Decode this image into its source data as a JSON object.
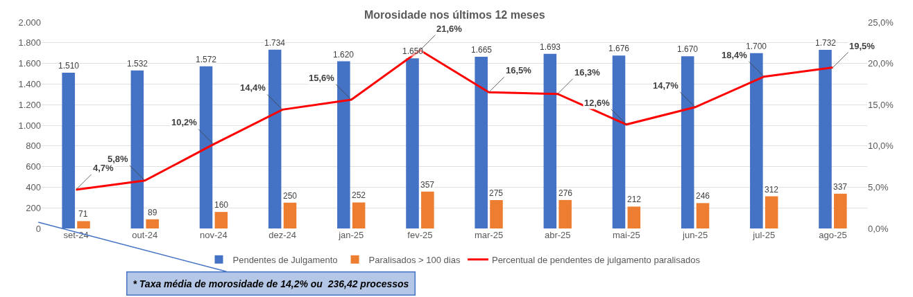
{
  "chart_data": {
    "type": "bar",
    "title": "Morosidade nos últimos 12 meses",
    "categories": [
      "set-24",
      "out-24",
      "nov-24",
      "dez-24",
      "jan-25",
      "fev-25",
      "mar-25",
      "abr-25",
      "mai-25",
      "jun-25",
      "jul-25",
      "ago-25"
    ],
    "series": [
      {
        "name": "Pendentes de Julgamento",
        "color": "#4472c4",
        "values": [
          1510,
          1532,
          1572,
          1734,
          1620,
          1650,
          1665,
          1693,
          1676,
          1670,
          1700,
          1732
        ],
        "value_labels": [
          "1.510",
          "1.532",
          "1.572",
          "1.734",
          "1.620",
          "1.650",
          "1.665",
          "1.693",
          "1.676",
          "1.670",
          "1.700",
          "1.732"
        ]
      },
      {
        "name": "Paralisados > 100 dias",
        "color": "#ed7d31",
        "values": [
          71,
          89,
          160,
          250,
          252,
          357,
          275,
          276,
          212,
          246,
          312,
          337
        ],
        "value_labels": [
          "71",
          "89",
          "160",
          "250",
          "252",
          "357",
          "275",
          "276",
          "212",
          "246",
          "312",
          "337"
        ]
      },
      {
        "name": "Percentual de pendentes de julgamento paralisados",
        "type": "line",
        "axis": "y2",
        "color": "#ff0000",
        "marker": "none",
        "line_style": "solid",
        "values": [
          4.7,
          5.8,
          10.2,
          14.4,
          15.6,
          21.6,
          16.5,
          16.3,
          12.6,
          14.7,
          18.4,
          19.5
        ],
        "value_labels": [
          "4,7%",
          "5,8%",
          "10,2%",
          "14,4%",
          "15,6%",
          "21,6%",
          "16,5%",
          "16,3%",
          "12,6%",
          "14,7%",
          "18,4%",
          "19,5%"
        ]
      }
    ],
    "ylim": [
      0,
      2000
    ],
    "yticks": [
      0,
      {
        "value": 200,
        "label": "200"
      },
      {
        "value": 400,
        "label": "400"
      },
      {
        "value": 600,
        "label": "600"
      },
      {
        "value": 800,
        "label": "800"
      },
      {
        "value": 1000,
        "label": "1.000"
      },
      {
        "value": 1200,
        "label": "1.200"
      },
      {
        "value": 1400,
        "label": "1.400"
      },
      {
        "value": 1600,
        "label": "1.600"
      },
      {
        "value": 1800,
        "label": "1.800"
      },
      {
        "value": 2000,
        "label": "2.000"
      }
    ],
    "y2lim": [
      0,
      25
    ],
    "y2ticks": [
      {
        "value": 0,
        "label": "0,0%"
      },
      {
        "value": 5,
        "label": "5,0%"
      },
      {
        "value": 10,
        "label": "10,0%"
      },
      {
        "value": 15,
        "label": "15,0%"
      },
      {
        "value": 20,
        "label": "20,0%"
      },
      {
        "value": 25,
        "label": "25,0%"
      }
    ],
    "grid": "y",
    "legend": "bottom",
    "annotations": [
      "* Taxa média de morosidade de 14,2% ou  236,42 processos"
    ]
  }
}
